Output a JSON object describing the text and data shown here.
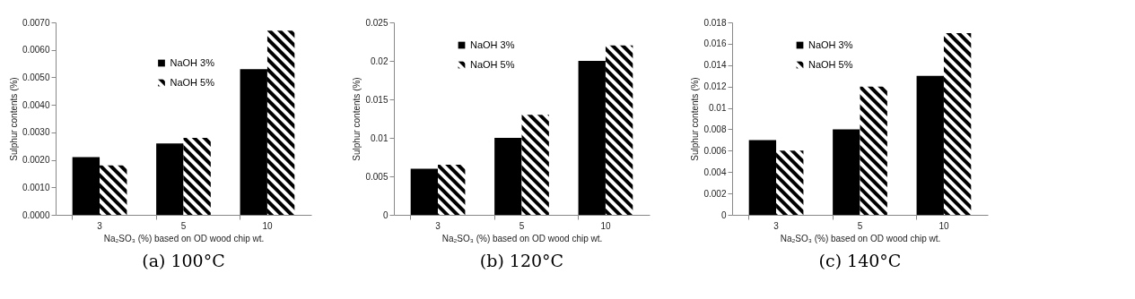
{
  "chart_data": [
    {
      "type": "bar",
      "title": "(a) 100°C",
      "xlabel": "Na₂SO₃ (%) based on OD wood chip wt.",
      "ylabel": "Sulphur contents (%)",
      "categories": [
        "3",
        "5",
        "10"
      ],
      "series": [
        {
          "name": "NaOH 3%",
          "color": "#000000",
          "values": [
            0.0021,
            0.0026,
            0.0053
          ]
        },
        {
          "name": "NaOH 5%",
          "color": "#000000",
          "values": [
            0.0018,
            0.0028,
            0.0067
          ]
        }
      ],
      "ylim": [
        0,
        0.007
      ],
      "yticks": [
        {
          "value": 0,
          "label": "0.0000"
        },
        {
          "value": 0.001,
          "label": "0.0010"
        },
        {
          "value": 0.002,
          "label": "0.0020"
        },
        {
          "value": 0.003,
          "label": "0.0030"
        },
        {
          "value": 0.004,
          "label": "0.0040"
        },
        {
          "value": 0.005,
          "label": "0.0050"
        },
        {
          "value": 0.006,
          "label": "0.0060"
        },
        {
          "value": 0.007,
          "label": "0.0070"
        }
      ],
      "grid": false,
      "legend": "top"
    },
    {
      "type": "bar",
      "title": "(b) 120°C",
      "xlabel": "Na₂SO₃ (%) based on OD wood chip wt.",
      "ylabel": "Sulphur contents (%)",
      "categories": [
        "3",
        "5",
        "10"
      ],
      "series": [
        {
          "name": "NaOH 3%",
          "color": "#000000",
          "values": [
            0.006,
            0.01,
            0.02
          ]
        },
        {
          "name": "NaOH 5%",
          "color": "#000000",
          "values": [
            0.0065,
            0.013,
            0.022
          ]
        }
      ],
      "ylim": [
        0,
        0.025
      ],
      "yticks": [
        0,
        0.005,
        0.01,
        0.015,
        0.02,
        0.025
      ],
      "grid": false,
      "legend": "top left"
    },
    {
      "type": "bar",
      "title": "(c) 140°C",
      "xlabel": "Na₂SO₃ (%) based on OD wood chip wt.",
      "ylabel": "Sulphur contents (%)",
      "categories": [
        "3",
        "5",
        "10"
      ],
      "series": [
        {
          "name": "NaOH 3%",
          "color": "#000000",
          "values": [
            0.007,
            0.008,
            0.013
          ]
        },
        {
          "name": "NaOH 5%",
          "color": "#000000",
          "values": [
            0.006,
            0.012,
            0.017
          ]
        }
      ],
      "ylim": [
        0,
        0.018
      ],
      "yticks": [
        0,
        0.002,
        0.004,
        0.006,
        0.008,
        0.01,
        0.012,
        0.014,
        0.016,
        0.018
      ],
      "grid": false,
      "legend": "top left"
    }
  ]
}
